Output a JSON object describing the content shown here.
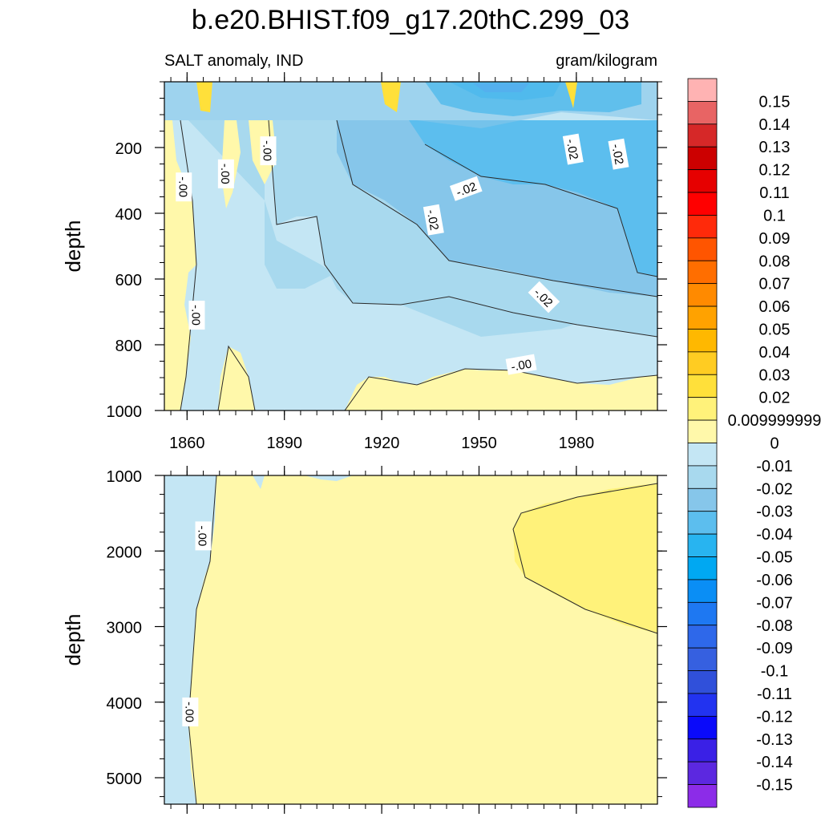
{
  "chart_data": {
    "type": "contour",
    "title": "b.e20.BHIST.f09_g17.20thC.299_03",
    "left_subtitle": "SALT anomaly, IND",
    "right_subtitle": "gram/kilogram",
    "xaxis": {
      "range": [
        1853,
        2005
      ],
      "ticks": [
        1860,
        1890,
        1920,
        1950,
        1980
      ]
    },
    "panels": [
      {
        "name": "upper",
        "ylabel": "depth",
        "ylim": [
          0,
          1000
        ],
        "yticks": [
          200,
          400,
          600,
          800,
          1000
        ],
        "contour_labels": [
          {
            "text": "-.00",
            "x": 1859,
            "y": 320,
            "rot": 90
          },
          {
            "text": "-.00",
            "x": 1872,
            "y": 280,
            "rot": 90
          },
          {
            "text": "-.00",
            "x": 1885,
            "y": 210,
            "rot": 90
          },
          {
            "text": "-.00",
            "x": 1863,
            "y": 710,
            "rot": 90
          },
          {
            "text": "-.02",
            "x": 1936,
            "y": 420,
            "rot": 80
          },
          {
            "text": "-.02",
            "x": 1946,
            "y": 325,
            "rot": -20
          },
          {
            "text": "-.02",
            "x": 1979,
            "y": 205,
            "rot": 80
          },
          {
            "text": "-.02",
            "x": 1993,
            "y": 220,
            "rot": 80
          },
          {
            "text": "-.02",
            "x": 1970,
            "y": 655,
            "rot": 45
          },
          {
            "text": "-.00",
            "x": 1963,
            "y": 860,
            "rot": -10
          }
        ]
      },
      {
        "name": "lower",
        "ylabel": "depth",
        "ylim": [
          1000,
          5350
        ],
        "yticks": [
          1000,
          2000,
          3000,
          4000,
          5000
        ],
        "contour_labels": [
          {
            "text": "-.00",
            "x": 1865,
            "y": 1800,
            "rot": 90
          },
          {
            "text": "-.00",
            "x": 1861,
            "y": 4130,
            "rot": 90
          }
        ]
      }
    ],
    "colorbar": {
      "levels": [
        "0.15",
        "0.14",
        "0.13",
        "0.12",
        "0.11",
        "0.1",
        "0.09",
        "0.08",
        "0.07",
        "0.06",
        "0.05",
        "0.04",
        "0.03",
        "0.02",
        "0.009999999",
        "0",
        "-0.01",
        "-0.02",
        "-0.03",
        "-0.04",
        "-0.05",
        "-0.06",
        "-0.07",
        "-0.08",
        "-0.09",
        "-0.1",
        "-0.11",
        "-0.12",
        "-0.13",
        "-0.14",
        "-0.15"
      ],
      "colors": [
        "#FFB3B3",
        "#E86464",
        "#D62828",
        "#CC0000",
        "#E60000",
        "#FF0000",
        "#FF2A0A",
        "#FF5500",
        "#FF6E00",
        "#FF8A00",
        "#FFA200",
        "#FFB800",
        "#FFCC22",
        "#FFE03A",
        "#FFF27A",
        "#FFF8AA",
        "#C4E6F4",
        "#A8D9EE",
        "#86C6EA",
        "#5CBEEE",
        "#28B4F0",
        "#00A8F2",
        "#0A8EF5",
        "#1E78F2",
        "#2E68EA",
        "#3660E0",
        "#3050DA",
        "#2233F0",
        "#0A0AFA",
        "#3A20E6",
        "#5C28E0",
        "#8C2CE8"
      ]
    }
  }
}
